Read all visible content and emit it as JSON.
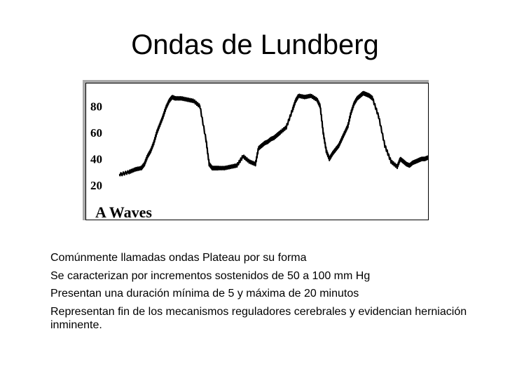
{
  "slide": {
    "title": "Ondas de Lundberg",
    "bullets": [
      "Comúnmente llamadas ondas Plateau por su forma",
      "Se caracterizan por incrementos sostenidos de 50 a 100 mm Hg",
      "Presentan una duración mínima de 5 y máxima de 20 minutos",
      "Representan fin de los mecanismos reguladores cerebrales y evidencian herniación inminente."
    ]
  },
  "chart_data": {
    "type": "line",
    "title": "A Waves",
    "xlabel": "",
    "ylabel": "",
    "yticks": [
      80,
      60,
      40,
      20
    ],
    "ylim": [
      12,
      92
    ],
    "xlim": [
      0,
      100
    ],
    "grid": false,
    "series": [
      {
        "x": [
          0,
          3,
          5,
          7,
          8,
          9,
          10,
          11,
          12,
          13,
          14,
          15,
          16,
          17,
          18,
          20,
          22,
          24,
          26,
          28,
          29,
          30,
          31,
          32,
          34,
          36,
          38,
          40,
          42,
          44,
          45,
          46,
          47,
          48,
          49,
          50,
          51,
          52,
          54,
          56,
          57,
          58,
          60,
          62,
          64,
          65,
          66,
          67,
          68,
          69,
          70,
          71,
          72,
          73,
          74,
          75,
          76,
          77,
          78,
          79,
          80,
          81,
          82,
          84,
          86,
          88,
          90,
          91,
          92,
          93,
          94,
          95,
          96,
          97,
          98,
          99,
          100
        ],
        "y": [
          28,
          30,
          32,
          33,
          36,
          42,
          46,
          52,
          60,
          66,
          72,
          79,
          84,
          87,
          86,
          86,
          85,
          84,
          80,
          54,
          36,
          33,
          33,
          33,
          33,
          34,
          35,
          42,
          38,
          36,
          48,
          50,
          52,
          53,
          55,
          56,
          58,
          60,
          64,
          77,
          84,
          88,
          87,
          88,
          85,
          80,
          60,
          46,
          40,
          44,
          47,
          50,
          55,
          60,
          65,
          75,
          82,
          86,
          88,
          90,
          89,
          88,
          86,
          72,
          50,
          38,
          34,
          40,
          38,
          36,
          35,
          37,
          38,
          39,
          40,
          40,
          41
        ]
      }
    ]
  }
}
